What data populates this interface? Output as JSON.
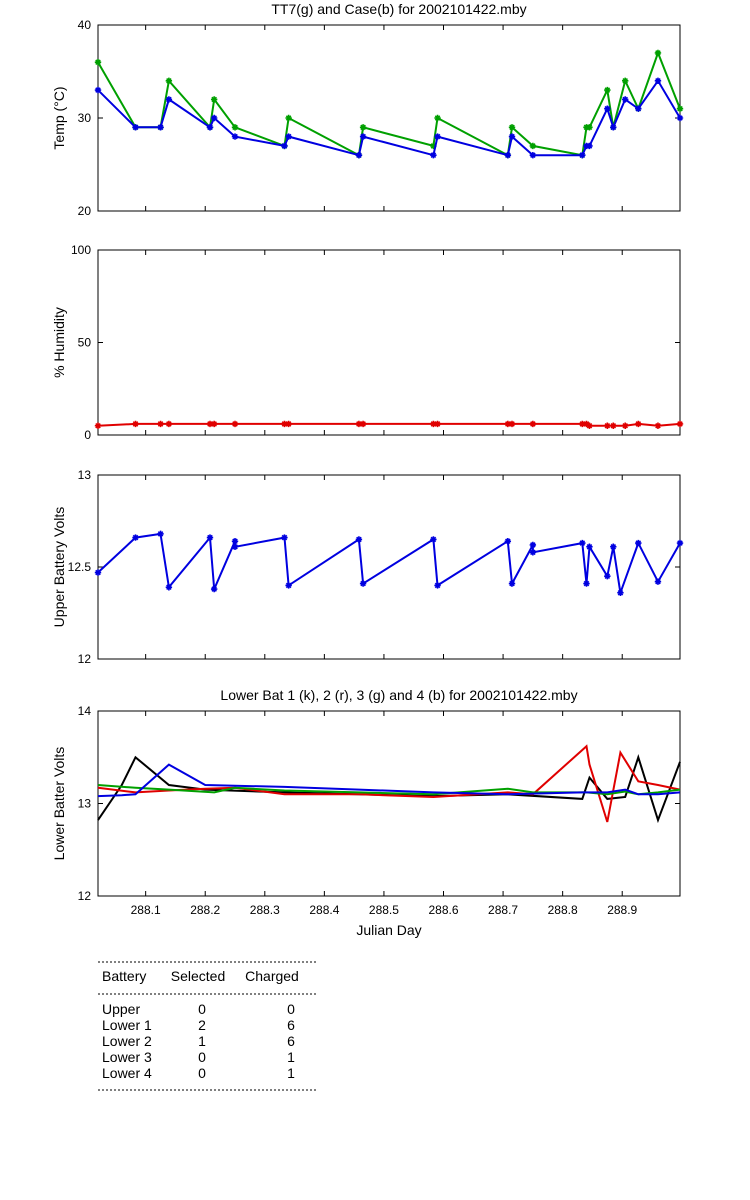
{
  "chart_data": [
    {
      "type": "line",
      "title": "TT7(g) and Case(b) for 2002101422.mby",
      "xlabel": "",
      "ylabel": "Temp  (°C)",
      "xlim": [
        288.02,
        288.997
      ],
      "ylim": [
        20,
        40
      ],
      "yticks": [
        20,
        30,
        40
      ],
      "grid": false,
      "series": [
        {
          "color": "#00a000",
          "marker": "*",
          "x": [
            288.02,
            288.083,
            288.125,
            288.139,
            288.208,
            288.215,
            288.25,
            288.333,
            288.34,
            288.458,
            288.465,
            288.583,
            288.59,
            288.708,
            288.715,
            288.75,
            288.833,
            288.84,
            288.845,
            288.875,
            288.885,
            288.905,
            288.927,
            288.96,
            288.997
          ],
          "y": [
            36,
            29,
            29,
            34,
            29,
            32,
            29,
            27,
            30,
            26,
            29,
            27,
            30,
            26,
            29,
            27,
            26,
            29,
            29,
            33,
            29,
            34,
            31,
            37,
            31
          ]
        },
        {
          "color": "#0000e0",
          "marker": "*",
          "x": [
            288.02,
            288.083,
            288.125,
            288.139,
            288.208,
            288.215,
            288.25,
            288.333,
            288.34,
            288.458,
            288.465,
            288.583,
            288.59,
            288.708,
            288.715,
            288.75,
            288.833,
            288.84,
            288.845,
            288.875,
            288.885,
            288.905,
            288.927,
            288.96,
            288.997
          ],
          "y": [
            33,
            29,
            29,
            32,
            29,
            30,
            28,
            27,
            28,
            26,
            28,
            26,
            28,
            26,
            28,
            26,
            26,
            27,
            27,
            31,
            29,
            32,
            31,
            34,
            30
          ]
        }
      ]
    },
    {
      "type": "line",
      "title": "",
      "xlabel": "",
      "ylabel": "% Humidity",
      "xlim": [
        288.02,
        288.997
      ],
      "ylim": [
        0,
        100
      ],
      "yticks": [
        0,
        50,
        100
      ],
      "grid": false,
      "series": [
        {
          "color": "#e00000",
          "marker": "*",
          "x": [
            288.02,
            288.083,
            288.125,
            288.139,
            288.208,
            288.215,
            288.25,
            288.333,
            288.34,
            288.458,
            288.465,
            288.583,
            288.59,
            288.708,
            288.715,
            288.75,
            288.833,
            288.84,
            288.845,
            288.875,
            288.885,
            288.905,
            288.927,
            288.96,
            288.997
          ],
          "y": [
            5,
            6,
            6,
            6,
            6,
            6,
            6,
            6,
            6,
            6,
            6,
            6,
            6,
            6,
            6,
            6,
            6,
            6,
            5,
            5,
            5,
            5,
            6,
            5,
            6
          ]
        }
      ]
    },
    {
      "type": "line",
      "title": "",
      "xlabel": "",
      "ylabel": "Upper Battery Volts",
      "xlim": [
        288.02,
        288.997
      ],
      "ylim": [
        12,
        13
      ],
      "yticks": [
        12,
        12.5,
        13
      ],
      "grid": false,
      "series": [
        {
          "color": "#0000e0",
          "marker": "*",
          "x": [
            288.02,
            288.083,
            288.125,
            288.139,
            288.208,
            288.215,
            288.25,
            288.25,
            288.333,
            288.34,
            288.458,
            288.465,
            288.583,
            288.59,
            288.708,
            288.715,
            288.75,
            288.75,
            288.833,
            288.84,
            288.845,
            288.875,
            288.885,
            288.897,
            288.927,
            288.96,
            288.997
          ],
          "y": [
            12.47,
            12.66,
            12.68,
            12.39,
            12.66,
            12.38,
            12.64,
            12.61,
            12.66,
            12.4,
            12.65,
            12.41,
            12.65,
            12.4,
            12.64,
            12.41,
            12.62,
            12.58,
            12.63,
            12.41,
            12.61,
            12.45,
            12.61,
            12.36,
            12.63,
            12.42,
            12.63
          ]
        }
      ]
    },
    {
      "type": "line",
      "title": "Lower Bat 1 (k), 2 (r), 3 (g) and 4 (b) for 2002101422.mby",
      "xlabel": "Julian Day",
      "ylabel": "Lower Batter Volts",
      "xlim": [
        288.02,
        288.997
      ],
      "ylim": [
        12,
        14
      ],
      "yticks": [
        12,
        13,
        14
      ],
      "xticks": [
        288.1,
        288.2,
        288.3,
        288.4,
        288.5,
        288.6,
        288.7,
        288.8,
        288.9
      ],
      "grid": false,
      "series": [
        {
          "color": "#000000",
          "x": [
            288.02,
            288.06,
            288.083,
            288.139,
            288.2,
            288.333,
            288.458,
            288.583,
            288.708,
            288.833,
            288.845,
            288.875,
            288.905,
            288.927,
            288.96,
            288.997
          ],
          "y": [
            12.82,
            13.2,
            13.5,
            13.2,
            13.15,
            13.12,
            13.1,
            13.08,
            13.1,
            13.05,
            13.28,
            13.05,
            13.07,
            13.5,
            12.82,
            13.45
          ]
        },
        {
          "color": "#e00000",
          "x": [
            288.02,
            288.083,
            288.139,
            288.2,
            288.25,
            288.333,
            288.458,
            288.583,
            288.708,
            288.75,
            288.84,
            288.845,
            288.875,
            288.897,
            288.927,
            288.96,
            288.997
          ],
          "y": [
            13.17,
            13.12,
            13.14,
            13.16,
            13.17,
            13.1,
            13.1,
            13.07,
            13.12,
            13.1,
            13.62,
            13.42,
            12.8,
            13.55,
            13.24,
            13.2,
            13.15
          ]
        },
        {
          "color": "#00a000",
          "x": [
            288.02,
            288.083,
            288.139,
            288.215,
            288.25,
            288.333,
            288.458,
            288.583,
            288.708,
            288.75,
            288.84,
            288.875,
            288.905,
            288.927,
            288.96,
            288.997
          ],
          "y": [
            13.2,
            13.17,
            13.15,
            13.12,
            13.17,
            13.14,
            13.12,
            13.1,
            13.16,
            13.12,
            13.12,
            13.1,
            13.13,
            13.1,
            13.12,
            13.15
          ]
        },
        {
          "color": "#0000e0",
          "x": [
            288.02,
            288.06,
            288.083,
            288.139,
            288.2,
            288.333,
            288.458,
            288.583,
            288.708,
            288.833,
            288.875,
            288.905,
            288.927,
            288.96,
            288.997
          ],
          "y": [
            13.08,
            13.09,
            13.1,
            13.42,
            13.2,
            13.18,
            13.15,
            13.12,
            13.1,
            13.12,
            13.12,
            13.15,
            13.1,
            13.1,
            13.12
          ]
        }
      ]
    }
  ],
  "battery_table": {
    "headers": [
      "Battery",
      "Selected",
      "Charged"
    ],
    "rows": [
      [
        "Upper",
        "0",
        "0"
      ],
      [
        "Lower 1",
        "2",
        "6"
      ],
      [
        "Lower 2",
        "1",
        "6"
      ],
      [
        "Lower 3",
        "0",
        "1"
      ],
      [
        "Lower 4",
        "0",
        "1"
      ]
    ]
  }
}
